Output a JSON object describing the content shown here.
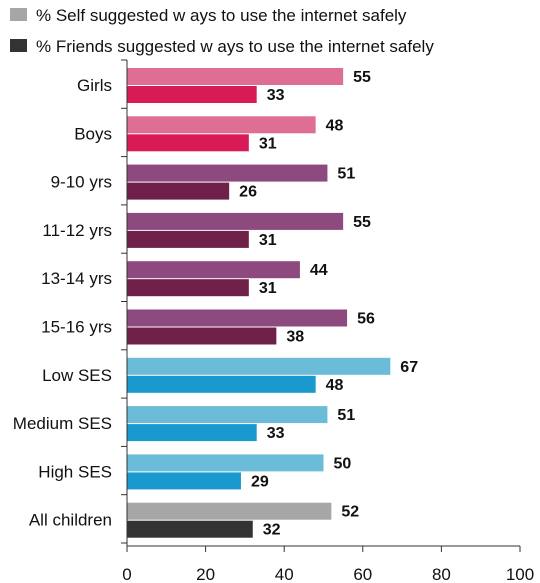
{
  "chart_data": {
    "type": "bar",
    "orientation": "horizontal",
    "title": "",
    "xlabel": "",
    "ylabel": "",
    "xlim": [
      0,
      100
    ],
    "x_ticks": [
      "0",
      "20",
      "40",
      "60",
      "80",
      "100"
    ],
    "grid": false,
    "legend_position": "top-left",
    "legend": [
      {
        "label": "% Self suggested w ays to use the internet safely",
        "color": "#a6a6a6"
      },
      {
        "label": "% Friends suggested w ays to use the internet safely",
        "color": "#333333"
      }
    ],
    "categories": [
      "Girls",
      "Boys",
      "9-10 yrs",
      "11-12 yrs",
      "13-14 yrs",
      "15-16 yrs",
      "Low  SES",
      "Medium SES",
      "High SES",
      "All children"
    ],
    "series": [
      {
        "name": "% Self suggested w ays to use the internet safely",
        "values": [
          55,
          48,
          51,
          55,
          44,
          56,
          67,
          51,
          50,
          52
        ]
      },
      {
        "name": "% Friends suggested w ays to use the internet safely",
        "values": [
          33,
          31,
          26,
          31,
          31,
          38,
          48,
          33,
          29,
          32
        ]
      }
    ],
    "bar_colors": {
      "self": [
        "#df6e95",
        "#df6e95",
        "#8d4a7e",
        "#8d4a7e",
        "#8d4a7e",
        "#8d4a7e",
        "#6bbcd8",
        "#6bbcd8",
        "#6bbcd8",
        "#a6a6a6"
      ],
      "friends": [
        "#d81b57",
        "#d81b57",
        "#6e2048",
        "#6e2048",
        "#6e2048",
        "#6e2048",
        "#1a99cf",
        "#1a99cf",
        "#1a99cf",
        "#333333"
      ]
    }
  }
}
